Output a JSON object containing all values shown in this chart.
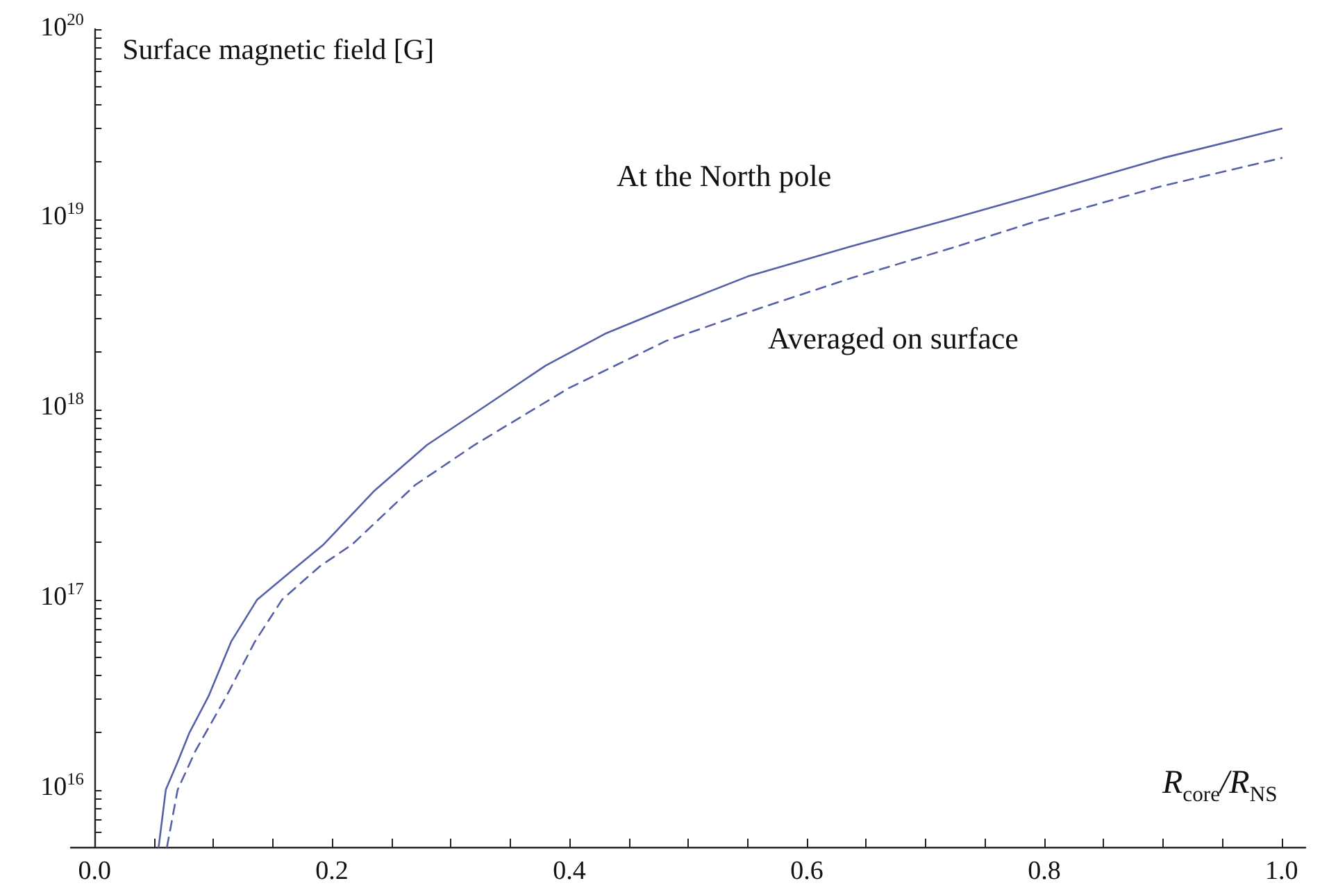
{
  "chart_data": {
    "type": "line",
    "xlabel": "R$_{core}$/R$_{NS}$",
    "ylabel": "Surface magnetic field [G]",
    "log": "y",
    "grid": false,
    "marker": "none",
    "xlim": [
      -0.02,
      1.02
    ],
    "xticks": [
      {
        "value": 0,
        "label": "0.0"
      },
      {
        "value": 0.05,
        "label": null
      },
      {
        "value": 0.1,
        "label": null
      },
      {
        "value": 0.15,
        "label": null
      },
      {
        "value": 0.2,
        "label": "0.2"
      },
      {
        "value": 0.25,
        "label": null
      },
      {
        "value": 0.3,
        "label": null
      },
      {
        "value": 0.35,
        "label": null
      },
      {
        "value": 0.4,
        "label": "0.4"
      },
      {
        "value": 0.45,
        "label": null
      },
      {
        "value": 0.5,
        "label": null
      },
      {
        "value": 0.55,
        "label": null
      },
      {
        "value": 0.6,
        "label": "0.6"
      },
      {
        "value": 0.65,
        "label": null
      },
      {
        "value": 0.7,
        "label": null
      },
      {
        "value": 0.75,
        "label": null
      },
      {
        "value": 0.8,
        "label": "0.8"
      },
      {
        "value": 0.85,
        "label": null
      },
      {
        "value": 0.9,
        "label": null
      },
      {
        "value": 0.95,
        "label": null
      },
      {
        "value": 1,
        "label": "1.0"
      }
    ],
    "ylim": [
      5000000000000000.0,
      1e+20
    ],
    "yticks": [
      {
        "value": 6000000000000000.0,
        "label": null
      },
      {
        "value": 7000000000000000.0,
        "label": null
      },
      {
        "value": 8000000000000000.0,
        "label": null
      },
      {
        "value": 9000000000000000.0,
        "label": null
      },
      {
        "value": 1e+16,
        "label": "10$^{16}$"
      },
      {
        "value": 2e+16,
        "label": null
      },
      {
        "value": 3e+16,
        "label": null
      },
      {
        "value": 4e+16,
        "label": null
      },
      {
        "value": 5e+16,
        "label": null
      },
      {
        "value": 6e+16,
        "label": null
      },
      {
        "value": 7e+16,
        "label": null
      },
      {
        "value": 8e+16,
        "label": null
      },
      {
        "value": 9e+16,
        "label": null
      },
      {
        "value": 1e+17,
        "label": "10$^{17}$"
      },
      {
        "value": 2e+17,
        "label": null
      },
      {
        "value": 3e+17,
        "label": null
      },
      {
        "value": 4e+17,
        "label": null
      },
      {
        "value": 5e+17,
        "label": null
      },
      {
        "value": 6e+17,
        "label": null
      },
      {
        "value": 7e+17,
        "label": null
      },
      {
        "value": 8e+17,
        "label": null
      },
      {
        "value": 9e+17,
        "label": null
      },
      {
        "value": 1e+18,
        "label": "10$^{18}$"
      },
      {
        "value": 2e+18,
        "label": null
      },
      {
        "value": 3e+18,
        "label": null
      },
      {
        "value": 4e+18,
        "label": null
      },
      {
        "value": 5e+18,
        "label": null
      },
      {
        "value": 6e+18,
        "label": null
      },
      {
        "value": 7e+18,
        "label": null
      },
      {
        "value": 8e+18,
        "label": null
      },
      {
        "value": 9e+18,
        "label": null
      },
      {
        "value": 1e+19,
        "label": "10$^{19}$"
      },
      {
        "value": 2e+19,
        "label": null
      },
      {
        "value": 3e+19,
        "label": null
      },
      {
        "value": 4e+19,
        "label": null
      },
      {
        "value": 5e+19,
        "label": null
      },
      {
        "value": 6e+19,
        "label": null
      },
      {
        "value": 7e+19,
        "label": null
      },
      {
        "value": 8e+19,
        "label": null
      },
      {
        "value": 9e+19,
        "label": null
      },
      {
        "value": 1e+20,
        "label": "10$^{20}$"
      }
    ],
    "series": [
      {
        "color": "#5560a8",
        "line_style": "solid",
        "x": [
          0.054,
          0.06,
          0.07,
          0.08,
          0.096,
          0.115,
          0.137,
          0.165,
          0.193,
          0.235,
          0.28,
          0.33,
          0.38,
          0.43,
          0.482,
          0.55,
          0.637,
          0.72,
          0.794,
          0.9,
          1.0
        ],
        "values": [
          5000000000000000.0,
          1e+16,
          1.4e+16,
          2e+16,
          3.1e+16,
          6e+16,
          1e+17,
          1.4e+17,
          1.95e+17,
          3.7e+17,
          6.5e+17,
          1.05e+18,
          1.7e+18,
          2.5e+18,
          3.4e+18,
          5e+18,
          7.2e+18,
          1e+19,
          1.35e+19,
          2.1e+19,
          3e+19
        ]
      },
      {
        "color": "#5560a8",
        "line_style": "dashed",
        "x": [
          0.061,
          0.07,
          0.085,
          0.111,
          0.135,
          0.158,
          0.19,
          0.217,
          0.27,
          0.32,
          0.4,
          0.482,
          0.56,
          0.637,
          0.72,
          0.794,
          0.9,
          1.0
        ],
        "values": [
          5000000000000000.0,
          1e+16,
          1.6e+16,
          3.1e+16,
          6e+16,
          1e+17,
          1.5e+17,
          1.95e+17,
          4e+17,
          6.5e+17,
          1.3e+18,
          2.3e+18,
          3.4e+18,
          4.9e+18,
          7e+18,
          9.8e+18,
          1.5e+19,
          2.1e+19
        ]
      }
    ],
    "annotations": [
      "At the North pole",
      "Averaged on surface"
    ]
  }
}
